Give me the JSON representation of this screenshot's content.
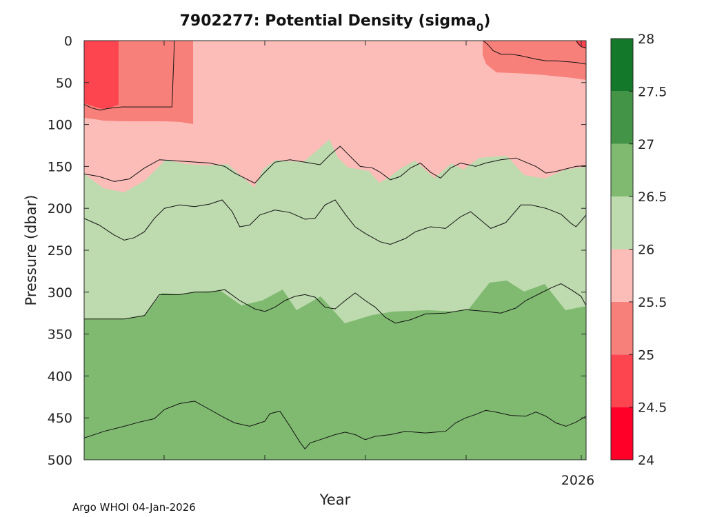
{
  "chart_data": {
    "type": "contour",
    "title": {
      "main": "7902277: Potential Density (sigma",
      "subscript": "0",
      "close": ")"
    },
    "xlabel": "Year",
    "ylabel": "Pressure (dbar)",
    "x_tick_labels": [
      "2026"
    ],
    "ylim": [
      0,
      500
    ],
    "y_ticks": [
      0,
      50,
      100,
      150,
      200,
      250,
      300,
      350,
      400,
      450,
      500
    ],
    "y_tick_labels": [
      "0",
      "50",
      "100",
      "150",
      "200",
      "250",
      "300",
      "350",
      "400",
      "450",
      "500"
    ],
    "colorbar": {
      "levels": [
        24,
        24.5,
        25,
        25.5,
        26,
        26.5,
        27,
        27.5,
        28
      ],
      "tick_labels": [
        "24",
        "24.5",
        "25",
        "25.5",
        "26",
        "26.5",
        "27",
        "27.5",
        "28"
      ],
      "colors": [
        "#ff0028",
        "#fd4550",
        "#f8807a",
        "#fcbdb9",
        "#bedaaf",
        "#80ba71",
        "#439447",
        "#14782a"
      ]
    },
    "contour_levels": [
      {
        "sigma": 25.5,
        "region": "upper-left",
        "points": [
          [
            0.0,
            76
          ],
          [
            0.014,
            80
          ],
          [
            0.032,
            83
          ],
          [
            0.046,
            81
          ],
          [
            0.06,
            80
          ],
          [
            0.075,
            79
          ],
          [
            0.09,
            79
          ],
          [
            0.11,
            79
          ],
          [
            0.125,
            79
          ],
          [
            0.14,
            79
          ],
          [
            0.16,
            79
          ],
          [
            0.175,
            79
          ],
          [
            0.18,
            0
          ]
        ]
      },
      {
        "sigma": 25.5,
        "region": "upper-right",
        "points": [
          [
            0.795,
            0
          ],
          [
            0.805,
            5
          ],
          [
            0.815,
            12
          ],
          [
            0.83,
            16
          ],
          [
            0.85,
            16
          ],
          [
            0.87,
            18
          ],
          [
            0.9,
            22
          ],
          [
            0.92,
            24
          ],
          [
            0.94,
            24
          ],
          [
            0.96,
            25
          ],
          [
            0.98,
            26
          ],
          [
            1.0,
            28
          ]
        ]
      },
      {
        "sigma": 25.0,
        "region": "upper-right",
        "points": [
          [
            0.98,
            0
          ],
          [
            0.985,
            4
          ],
          [
            0.99,
            7
          ],
          [
            1.0,
            9
          ]
        ]
      },
      {
        "sigma": 26.0,
        "points": [
          [
            0.0,
            159
          ],
          [
            0.03,
            162
          ],
          [
            0.06,
            168
          ],
          [
            0.09,
            165
          ],
          [
            0.12,
            152
          ],
          [
            0.15,
            142
          ],
          [
            0.2,
            144
          ],
          [
            0.25,
            146
          ],
          [
            0.28,
            150
          ],
          [
            0.3,
            158
          ],
          [
            0.32,
            164
          ],
          [
            0.34,
            170
          ],
          [
            0.355,
            160
          ],
          [
            0.38,
            145
          ],
          [
            0.41,
            142
          ],
          [
            0.44,
            145
          ],
          [
            0.47,
            148
          ],
          [
            0.49,
            136
          ],
          [
            0.51,
            126
          ],
          [
            0.53,
            138
          ],
          [
            0.55,
            150
          ],
          [
            0.575,
            152
          ],
          [
            0.59,
            157
          ],
          [
            0.61,
            166
          ],
          [
            0.63,
            162
          ],
          [
            0.65,
            152
          ],
          [
            0.67,
            146
          ],
          [
            0.69,
            157
          ],
          [
            0.71,
            164
          ],
          [
            0.73,
            152
          ],
          [
            0.75,
            146
          ],
          [
            0.78,
            150
          ],
          [
            0.8,
            146
          ],
          [
            0.83,
            142
          ],
          [
            0.86,
            140
          ],
          [
            0.88,
            145
          ],
          [
            0.9,
            150
          ],
          [
            0.92,
            158
          ],
          [
            0.94,
            156
          ],
          [
            0.96,
            153
          ],
          [
            0.98,
            150
          ],
          [
            1.0,
            149
          ]
        ]
      },
      {
        "sigma": 26.5,
        "points": [
          [
            0.0,
            212
          ],
          [
            0.03,
            220
          ],
          [
            0.06,
            232
          ],
          [
            0.08,
            238
          ],
          [
            0.1,
            235
          ],
          [
            0.12,
            228
          ],
          [
            0.14,
            212
          ],
          [
            0.16,
            200
          ],
          [
            0.19,
            196
          ],
          [
            0.22,
            198
          ],
          [
            0.25,
            195
          ],
          [
            0.275,
            190
          ],
          [
            0.295,
            204
          ],
          [
            0.31,
            222
          ],
          [
            0.33,
            220
          ],
          [
            0.35,
            208
          ],
          [
            0.38,
            202
          ],
          [
            0.41,
            205
          ],
          [
            0.44,
            213
          ],
          [
            0.46,
            212
          ],
          [
            0.48,
            196
          ],
          [
            0.5,
            190
          ],
          [
            0.52,
            207
          ],
          [
            0.54,
            222
          ],
          [
            0.56,
            230
          ],
          [
            0.59,
            240
          ],
          [
            0.61,
            243
          ],
          [
            0.64,
            236
          ],
          [
            0.66,
            228
          ],
          [
            0.69,
            222
          ],
          [
            0.72,
            224
          ],
          [
            0.75,
            210
          ],
          [
            0.77,
            204
          ],
          [
            0.79,
            214
          ],
          [
            0.81,
            224
          ],
          [
            0.84,
            217
          ],
          [
            0.87,
            196
          ],
          [
            0.89,
            196
          ],
          [
            0.92,
            200
          ],
          [
            0.95,
            207
          ],
          [
            0.97,
            218
          ],
          [
            0.98,
            222
          ],
          [
            1.0,
            208
          ]
        ]
      },
      {
        "sigma": 27.0,
        "points": [
          [
            0.0,
            332
          ],
          [
            0.04,
            332
          ],
          [
            0.08,
            332
          ],
          [
            0.12,
            328
          ],
          [
            0.15,
            303
          ],
          [
            0.19,
            303
          ],
          [
            0.22,
            300
          ],
          [
            0.25,
            300
          ],
          [
            0.28,
            297
          ],
          [
            0.31,
            310
          ],
          [
            0.34,
            320
          ],
          [
            0.36,
            323
          ],
          [
            0.38,
            318
          ],
          [
            0.4,
            310
          ],
          [
            0.42,
            305
          ],
          [
            0.44,
            303
          ],
          [
            0.46,
            306
          ],
          [
            0.48,
            318
          ],
          [
            0.5,
            320
          ],
          [
            0.52,
            310
          ],
          [
            0.54,
            301
          ],
          [
            0.56,
            310
          ],
          [
            0.58,
            318
          ],
          [
            0.6,
            330
          ],
          [
            0.62,
            337
          ],
          [
            0.65,
            333
          ],
          [
            0.68,
            326
          ],
          [
            0.72,
            325
          ],
          [
            0.76,
            321
          ],
          [
            0.8,
            323
          ],
          [
            0.83,
            325
          ],
          [
            0.86,
            319
          ],
          [
            0.88,
            310
          ],
          [
            0.91,
            301
          ],
          [
            0.93,
            295
          ],
          [
            0.95,
            290
          ],
          [
            0.97,
            297
          ],
          [
            0.99,
            305
          ],
          [
            1.0,
            316
          ]
        ]
      },
      {
        "sigma": 27.5,
        "points": [
          [
            0.0,
            474
          ],
          [
            0.04,
            466
          ],
          [
            0.08,
            460
          ],
          [
            0.11,
            455
          ],
          [
            0.14,
            451
          ],
          [
            0.16,
            440
          ],
          [
            0.19,
            433
          ],
          [
            0.22,
            430
          ],
          [
            0.25,
            440
          ],
          [
            0.28,
            450
          ],
          [
            0.3,
            456
          ],
          [
            0.33,
            460
          ],
          [
            0.36,
            454
          ],
          [
            0.37,
            445
          ],
          [
            0.39,
            442
          ],
          [
            0.41,
            460
          ],
          [
            0.43,
            479
          ],
          [
            0.44,
            487
          ],
          [
            0.45,
            480
          ],
          [
            0.47,
            476
          ],
          [
            0.5,
            470
          ],
          [
            0.52,
            467
          ],
          [
            0.54,
            470
          ],
          [
            0.56,
            476
          ],
          [
            0.58,
            472
          ],
          [
            0.61,
            470
          ],
          [
            0.64,
            466
          ],
          [
            0.68,
            468
          ],
          [
            0.72,
            466
          ],
          [
            0.74,
            456
          ],
          [
            0.76,
            450
          ],
          [
            0.78,
            446
          ],
          [
            0.8,
            441
          ],
          [
            0.82,
            443
          ],
          [
            0.85,
            447
          ],
          [
            0.88,
            448
          ],
          [
            0.9,
            443
          ],
          [
            0.92,
            448
          ],
          [
            0.94,
            456
          ],
          [
            0.96,
            460
          ],
          [
            0.98,
            455
          ],
          [
            1.0,
            448
          ]
        ]
      }
    ]
  },
  "footer": {
    "text": "Argo WHOI 04-Jan-2026"
  }
}
